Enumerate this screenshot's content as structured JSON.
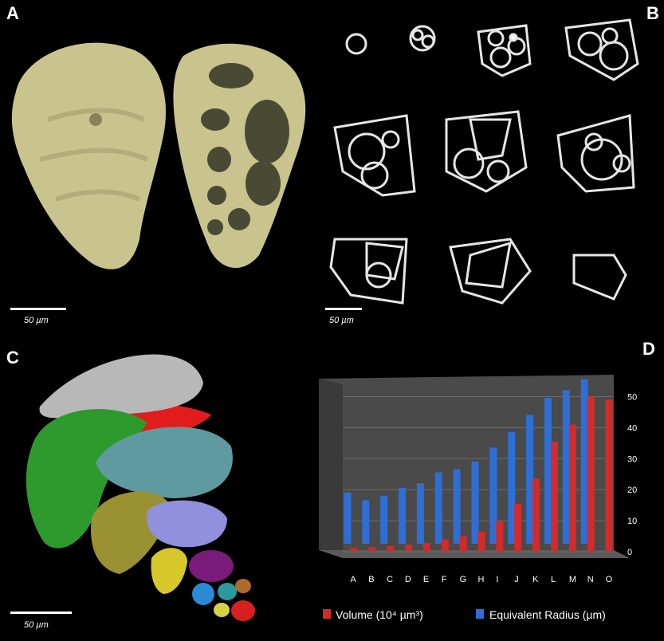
{
  "panels": {
    "a": {
      "label": "A",
      "scale": "50 µm"
    },
    "b": {
      "label": "B",
      "scale": "50 µm"
    },
    "c": {
      "label": "C",
      "scale": "50 µm"
    },
    "d": {
      "label": "D"
    }
  },
  "chart_data": {
    "type": "bar",
    "categories": [
      "A",
      "B",
      "C",
      "D",
      "E",
      "F",
      "G",
      "H",
      "I",
      "J",
      "K",
      "L",
      "M",
      "N",
      "O"
    ],
    "series": [
      {
        "name": "Volume (10⁴ µm³)",
        "color": "#d42a2a",
        "values": [
          1.2,
          1.5,
          1.8,
          2.3,
          2.8,
          4.0,
          5.0,
          6.5,
          10.0,
          15.5,
          23.5,
          35.5,
          41.0,
          50.0,
          49.0
        ]
      },
      {
        "name": "Equivalent Radius (µm)",
        "color": "#2d6fd6",
        "values": [
          16.5,
          14.0,
          15.5,
          18.0,
          19.5,
          23.0,
          24.0,
          26.5,
          31.0,
          36.0,
          41.5,
          47.0,
          49.5,
          53.0,
          null
        ]
      }
    ],
    "yticks": [
      "0",
      "10",
      "20",
      "30",
      "40",
      "50"
    ],
    "ylim": [
      0,
      55
    ],
    "legend_placement": "bottom"
  }
}
